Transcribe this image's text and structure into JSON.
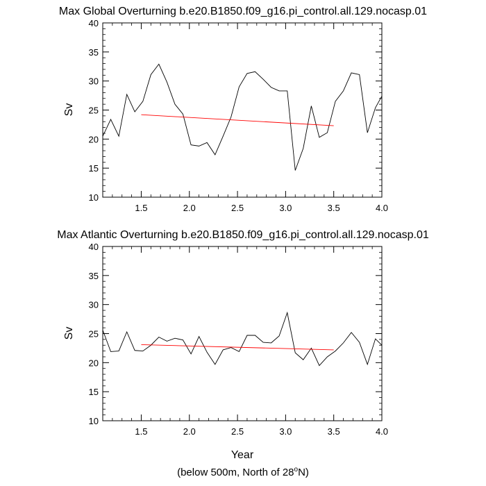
{
  "chart_data": [
    {
      "type": "line",
      "title": "Max Global Overturning b.e20.B1850.f09_g16.pi_control.all.129.nocasp.01",
      "xlabel": "",
      "ylabel": "Sv",
      "xlim": [
        1.1,
        4.0
      ],
      "ylim": [
        10,
        40
      ],
      "xticks": [
        1.5,
        2.0,
        2.5,
        3.0,
        3.5,
        4.0
      ],
      "xtick_labels": [
        "1.5",
        "2.0",
        "2.5",
        "3.0",
        "3.5",
        "4.0"
      ],
      "yticks": [
        10,
        15,
        20,
        25,
        30,
        35,
        40
      ],
      "ytick_labels": [
        "10",
        "15",
        "20",
        "25",
        "30",
        "35",
        "40"
      ],
      "grid": false,
      "series": [
        {
          "name": "Max Global Overturning",
          "color": "#000000",
          "x": [
            1.1,
            1.183,
            1.267,
            1.35,
            1.433,
            1.517,
            1.6,
            1.683,
            1.767,
            1.85,
            1.933,
            2.017,
            2.1,
            2.183,
            2.267,
            2.35,
            2.433,
            2.517,
            2.6,
            2.683,
            2.767,
            2.85,
            2.933,
            3.017,
            3.1,
            3.183,
            3.267,
            3.35,
            3.433,
            3.517,
            3.6,
            3.683,
            3.767,
            3.85,
            3.933,
            4.0
          ],
          "y": [
            20.5,
            23.4,
            20.5,
            27.7,
            24.7,
            26.5,
            31.1,
            32.9,
            29.8,
            26.0,
            24.3,
            19.0,
            18.8,
            19.4,
            17.3,
            20.5,
            23.8,
            29.0,
            31.3,
            31.6,
            30.3,
            28.9,
            28.3,
            28.3,
            14.6,
            18.4,
            25.7,
            20.3,
            21.1,
            26.5,
            28.3,
            31.4,
            31.1,
            21.1,
            25.4,
            27.4
          ]
        },
        {
          "name": "Linear trend",
          "color": "#ff0000",
          "x": [
            1.5,
            3.5
          ],
          "y": [
            24.2,
            22.3
          ]
        }
      ]
    },
    {
      "type": "line",
      "title": "Max Atlantic Overturning b.e20.B1850.f09_g16.pi_control.all.129.nocasp.01",
      "xlabel": "Year",
      "ylabel": "Sv",
      "xlim": [
        1.1,
        4.0
      ],
      "ylim": [
        10,
        40
      ],
      "xticks": [
        1.5,
        2.0,
        2.5,
        3.0,
        3.5,
        4.0
      ],
      "xtick_labels": [
        "1.5",
        "2.0",
        "2.5",
        "3.0",
        "3.5",
        "4.0"
      ],
      "yticks": [
        10,
        15,
        20,
        25,
        30,
        35,
        40
      ],
      "ytick_labels": [
        "10",
        "15",
        "20",
        "25",
        "30",
        "35",
        "40"
      ],
      "grid": false,
      "series": [
        {
          "name": "Max Atlantic Overturning",
          "color": "#000000",
          "x": [
            1.1,
            1.183,
            1.267,
            1.35,
            1.433,
            1.517,
            1.6,
            1.683,
            1.767,
            1.85,
            1.933,
            2.017,
            2.1,
            2.183,
            2.267,
            2.35,
            2.433,
            2.517,
            2.6,
            2.683,
            2.767,
            2.85,
            2.933,
            3.017,
            3.1,
            3.183,
            3.267,
            3.35,
            3.433,
            3.517,
            3.6,
            3.683,
            3.767,
            3.85,
            3.933,
            4.0
          ],
          "y": [
            25.6,
            21.9,
            22.0,
            25.3,
            22.1,
            22.0,
            23.0,
            24.4,
            23.7,
            24.2,
            23.9,
            21.5,
            24.5,
            21.8,
            19.7,
            22.2,
            22.6,
            21.9,
            24.7,
            24.7,
            23.5,
            23.4,
            24.6,
            28.6,
            21.7,
            20.5,
            22.5,
            19.5,
            21.0,
            22.0,
            23.4,
            25.2,
            23.5,
            19.7,
            24.1,
            23.0
          ]
        },
        {
          "name": "Linear trend",
          "color": "#ff0000",
          "x": [
            1.5,
            3.5
          ],
          "y": [
            23.1,
            22.2
          ]
        }
      ]
    }
  ],
  "footnote": {
    "prefix": "(below 500m, North of 28",
    "superscript": "o",
    "suffix": "N)"
  }
}
